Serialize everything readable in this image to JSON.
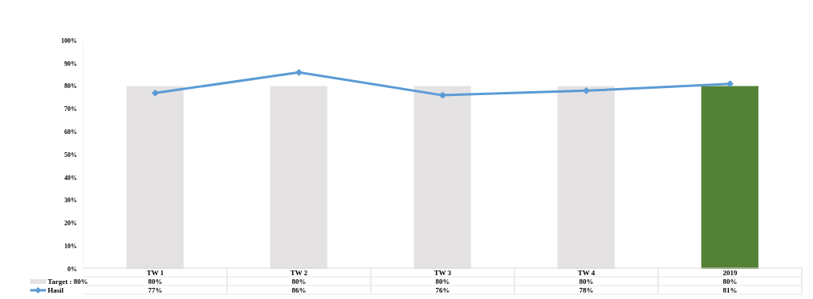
{
  "chart_data": {
    "type": "bar",
    "categories": [
      "TW 1",
      "TW 2",
      "TW 3",
      "TW 4",
      "2019"
    ],
    "series": [
      {
        "name": "Target : 80%",
        "color": "#e4e2e3",
        "colors": [
          "#e4e2e3",
          "#e4e2e3",
          "#e4e2e3",
          "#e4e2e3",
          "#538135"
        ],
        "values": [
          80,
          80,
          80,
          80,
          80
        ],
        "value_labels": [
          "80%",
          "80%",
          "80%",
          "80%",
          "80%"
        ]
      },
      {
        "name": "Hasil",
        "type": "line",
        "color": "#5b9bd5",
        "values": [
          77,
          86,
          76,
          78,
          81
        ],
        "value_labels": [
          "77%",
          "86%",
          "76%",
          "78%",
          "81%"
        ]
      }
    ],
    "ylim": [
      0,
      100
    ],
    "yticks": [
      {
        "value": 0,
        "label": "0%"
      },
      {
        "value": 10,
        "label": "10%"
      },
      {
        "value": 20,
        "label": "20%"
      },
      {
        "value": 30,
        "label": "30%"
      },
      {
        "value": 40,
        "label": "40%"
      },
      {
        "value": 50,
        "label": "50%"
      },
      {
        "value": 60,
        "label": "60%"
      },
      {
        "value": 70,
        "label": "70%"
      },
      {
        "value": 80,
        "label": "80%"
      },
      {
        "value": 90,
        "label": "90%"
      },
      {
        "value": 100,
        "label": "100%"
      }
    ],
    "grid": false,
    "legend": "bottom left",
    "marker": "diamond",
    "line_style": "solid"
  }
}
